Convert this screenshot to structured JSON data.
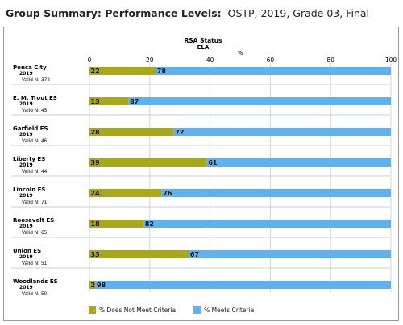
{
  "header": {
    "title_bold": "Group Summary: Performance Levels",
    "title_rest": "OSTP, 2019, Grade 03, Final"
  },
  "colors": {
    "not_meet": "#a8a81a",
    "meets": "#5fb1f0",
    "grid": "#d4d4d4",
    "separator": "#cfcfcf"
  },
  "chart_data": {
    "type": "bar",
    "orientation": "horizontal",
    "stacked": true,
    "title": "RSA Status",
    "subtitle": "ELA",
    "xlabel": "%",
    "xlim": [
      0,
      100
    ],
    "xticks": [
      0,
      20,
      40,
      60,
      80,
      100
    ],
    "grid": true,
    "legend_position": "bottom",
    "groups": [
      {
        "name": "Ponca City",
        "year": "2019",
        "valid": "Valid N: 372"
      },
      {
        "name": "E. M. Trout ES",
        "year": "2019",
        "valid": "Valid N: 45"
      },
      {
        "name": "Garfield ES",
        "year": "2019",
        "valid": "Valid N: 46"
      },
      {
        "name": "Liberty ES",
        "year": "2019",
        "valid": "Valid N: 44"
      },
      {
        "name": "Lincoln ES",
        "year": "2019",
        "valid": "Valid N: 71"
      },
      {
        "name": "Roosevelt ES",
        "year": "2019",
        "valid": "Valid N: 65"
      },
      {
        "name": "Union ES",
        "year": "2019",
        "valid": "Valid N: 51"
      },
      {
        "name": "Woodlands ES",
        "year": "2019",
        "valid": "Valid N: 50"
      }
    ],
    "series": [
      {
        "name": "% Does Not Meet Criteria",
        "values": [
          22,
          13,
          28,
          39,
          24,
          18,
          33,
          2
        ]
      },
      {
        "name": "% Meets Criteria",
        "values": [
          78,
          87,
          72,
          61,
          76,
          82,
          67,
          98
        ]
      }
    ]
  }
}
